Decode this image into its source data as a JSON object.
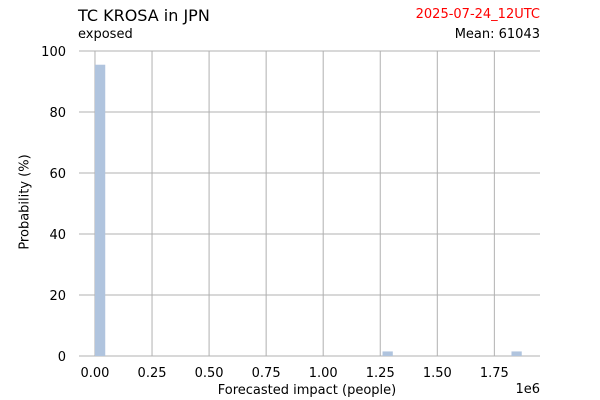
{
  "header": {
    "title": "TC KROSA in JPN",
    "subtitle": "exposed",
    "date": "2025-07-24_12UTC",
    "mean": "Mean: 61043"
  },
  "colors": {
    "bar": "#b0c4de",
    "grid": "#b0b0b0",
    "date": "#ff0000"
  },
  "chart_data": {
    "type": "bar",
    "xlabel": "Forecasted impact (people)",
    "ylabel": "Probability (%)",
    "x_offset_label": "1e6",
    "xlim": [
      -0.07,
      1.95
    ],
    "ylim": [
      0,
      100
    ],
    "x_ticks": [
      0,
      0.25,
      0.5,
      0.75,
      1.0,
      1.25,
      1.5,
      1.75
    ],
    "x_tick_labels": [
      "0.00",
      "0.25",
      "0.50",
      "0.75",
      "1.00",
      "1.25",
      "1.50",
      "1.75"
    ],
    "y_ticks": [
      0,
      20,
      40,
      60,
      80,
      100
    ],
    "y_tick_labels": [
      "0",
      "20",
      "40",
      "60",
      "80",
      "100"
    ],
    "grid": true,
    "bar_width": 0.045,
    "bars": [
      {
        "x": 0.0225,
        "value": 95.5
      },
      {
        "x": 1.2825,
        "value": 1.5
      },
      {
        "x": 1.8475,
        "value": 1.5
      }
    ]
  }
}
